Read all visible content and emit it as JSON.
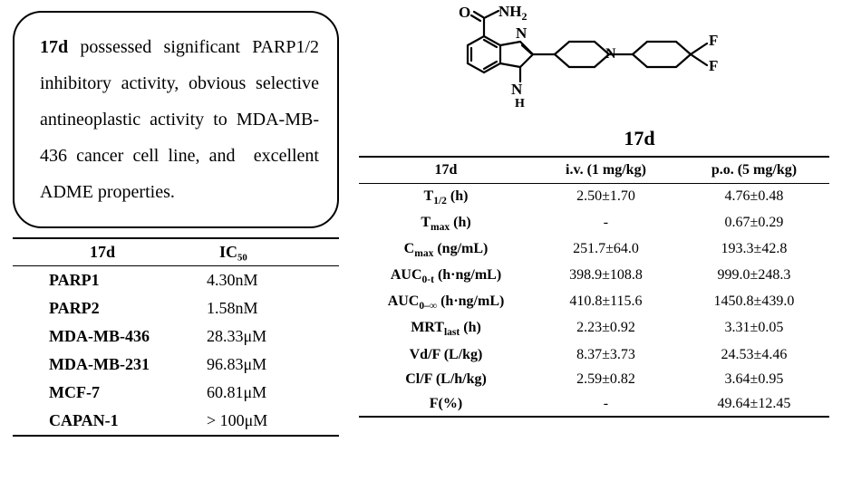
{
  "description": "17d possessed significant PARP1/2 inhibitory activity, obvious selective antineoplastic activity to MDA-MB-436 cancer cell line, and excellent ADME properties.",
  "compound_label": "17d",
  "left_table": {
    "col1_header": "17d",
    "col2_header": "IC₅₀",
    "rows": [
      {
        "name": "PARP1",
        "val": "4.30nM"
      },
      {
        "name": "PARP2",
        "val": "1.58nM"
      },
      {
        "name": "MDA-MB-436",
        "val": "28.33μM"
      },
      {
        "name": "MDA-MB-231",
        "val": "96.83μM"
      },
      {
        "name": "MCF-7",
        "val": "60.81μM"
      },
      {
        "name": "CAPAN-1",
        "val": "> 100μM"
      }
    ]
  },
  "right_table": {
    "col1_header": "17d",
    "col2_header": "i.v. (1 mg/kg)",
    "col3_header": "p.o. (5 mg/kg)",
    "rows": [
      {
        "name": "T<sub>1/2</sub> (h)",
        "iv": "2.50±1.70",
        "po": "4.76±0.48"
      },
      {
        "name": "T<sub>max</sub> (h)",
        "iv": "-",
        "po": "0.67±0.29"
      },
      {
        "name": "C<sub>max</sub> (ng/mL)",
        "iv": "251.7±64.0",
        "po": "193.3±42.8"
      },
      {
        "name": "AUC<sub>0-t</sub> (h·ng/mL)",
        "iv": "398.9±108.8",
        "po": "999.0±248.3"
      },
      {
        "name": "AUC<sub>0–∞</sub> (h·ng/mL)",
        "iv": "410.8±115.6",
        "po": "1450.8±439.0"
      },
      {
        "name": "MRT<sub>last</sub> (h)",
        "iv": "2.23±0.92",
        "po": "3.31±0.05"
      },
      {
        "name": "Vd/F (L/kg)",
        "iv": "8.37±3.73",
        "po": "24.53±4.46"
      },
      {
        "name": "Cl/F (L/h/kg)",
        "iv": "2.59±0.82",
        "po": "3.64±0.95"
      },
      {
        "name": "F(%)",
        "iv": "-",
        "po": "49.64±12.45"
      }
    ]
  },
  "chem_structure": {
    "labels": {
      "O": "O",
      "NH2": "NH₂",
      "N1": "N",
      "N2": "N",
      "NH": "H",
      "Np": "N",
      "F1": "F",
      "F2": "F"
    }
  }
}
